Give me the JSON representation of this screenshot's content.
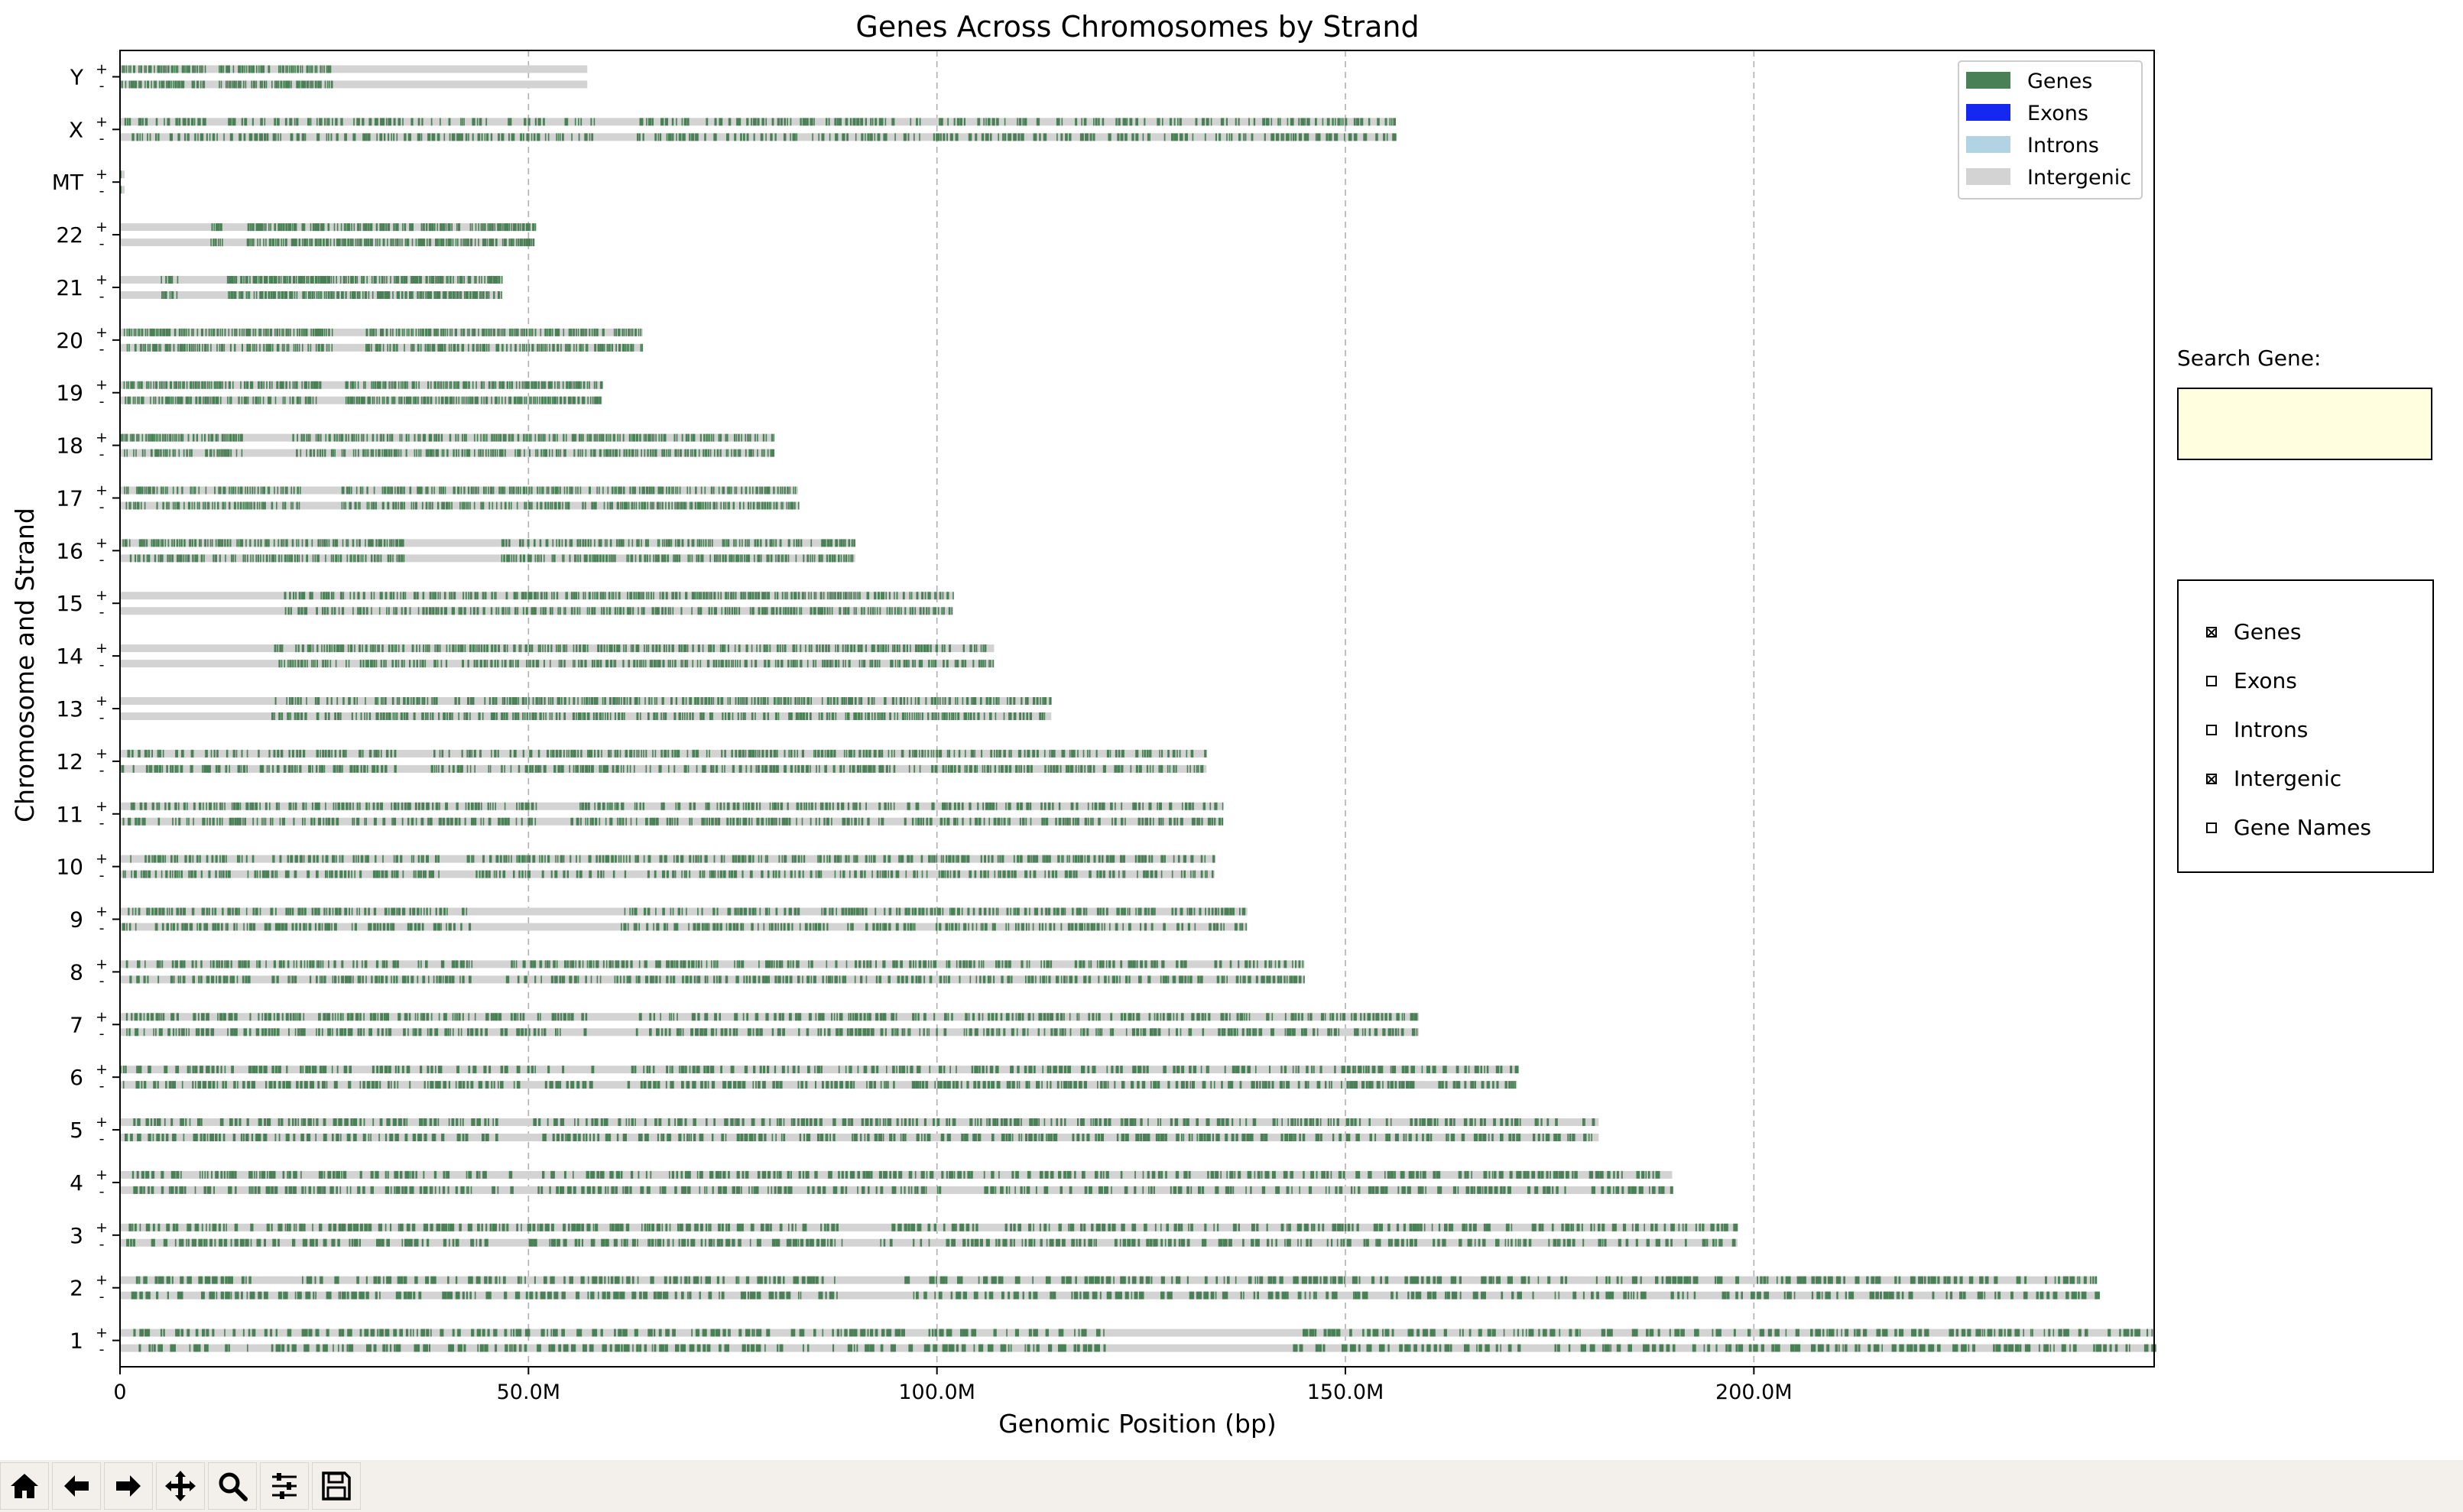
{
  "chart_data": {
    "type": "genomic-track",
    "title": "Genes Across Chromosomes by Strand",
    "xlabel": "Genomic Position (bp)",
    "ylabel": "Chromosome and Strand",
    "xlim": [
      0,
      249000000
    ],
    "x_ticks": [
      {
        "value": 0,
        "label": "0"
      },
      {
        "value": 50000000,
        "label": "50.0M"
      },
      {
        "value": 100000000,
        "label": "100.0M"
      },
      {
        "value": 150000000,
        "label": "150.0M"
      },
      {
        "value": 200000000,
        "label": "200.0M"
      }
    ],
    "grid": "vertical-dashed",
    "strands": [
      "+",
      "-"
    ],
    "legend_position": "top-right",
    "legend": [
      {
        "label": "Genes",
        "color": "#4a8055"
      },
      {
        "label": "Exons",
        "color": "#1528f2"
      },
      {
        "label": "Introns",
        "color": "#b2d3e4"
      },
      {
        "label": "Intergenic",
        "color": "#d3d3d3"
      }
    ],
    "chromosomes": [
      {
        "name": "1",
        "length": 249000000,
        "gaps": [
          [
            121500000,
            143500000
          ]
        ]
      },
      {
        "name": "2",
        "length": 242000000,
        "gaps": [
          [
            88000000,
            96000000
          ],
          [
            193000000,
            195000000
          ]
        ]
      },
      {
        "name": "3",
        "length": 198000000,
        "gaps": [
          [
            89000000,
            93000000
          ]
        ]
      },
      {
        "name": "4",
        "length": 190000000,
        "gaps": [
          [
            48000000,
            51000000
          ]
        ]
      },
      {
        "name": "5",
        "length": 181000000,
        "gaps": [
          [
            46000000,
            50000000
          ]
        ]
      },
      {
        "name": "6",
        "length": 171000000,
        "gaps": [
          [
            58000000,
            62000000
          ]
        ]
      },
      {
        "name": "7",
        "length": 159000000,
        "gaps": [
          [
            57000000,
            63000000
          ]
        ]
      },
      {
        "name": "8",
        "length": 145000000,
        "gaps": [
          [
            43000000,
            47000000
          ]
        ]
      },
      {
        "name": "9",
        "length": 138000000,
        "gaps": [
          [
            43000000,
            61000000
          ]
        ]
      },
      {
        "name": "10",
        "length": 134000000,
        "gaps": [
          [
            39000000,
            42000000
          ]
        ]
      },
      {
        "name": "11",
        "length": 135000000,
        "gaps": [
          [
            51000000,
            55000000
          ]
        ]
      },
      {
        "name": "12",
        "length": 133000000,
        "gaps": [
          [
            34000000,
            38000000
          ]
        ]
      },
      {
        "name": "13",
        "length": 114000000,
        "gaps": [
          [
            0,
            18500000
          ]
        ]
      },
      {
        "name": "14",
        "length": 107000000,
        "gaps": [
          [
            0,
            18500000
          ]
        ]
      },
      {
        "name": "15",
        "length": 102000000,
        "gaps": [
          [
            0,
            20000000
          ]
        ]
      },
      {
        "name": "16",
        "length": 90000000,
        "gaps": [
          [
            35000000,
            46500000
          ]
        ]
      },
      {
        "name": "17",
        "length": 83000000,
        "gaps": [
          [
            22000000,
            27000000
          ]
        ]
      },
      {
        "name": "18",
        "length": 80000000,
        "gaps": [
          [
            15000000,
            21000000
          ]
        ]
      },
      {
        "name": "19",
        "length": 59000000,
        "gaps": [
          [
            24500000,
            27500000
          ]
        ]
      },
      {
        "name": "20",
        "length": 64000000,
        "gaps": [
          [
            26000000,
            30000000
          ]
        ]
      },
      {
        "name": "21",
        "length": 46700000,
        "gaps": [
          [
            0,
            5000000
          ],
          [
            7000000,
            13000000
          ]
        ]
      },
      {
        "name": "22",
        "length": 50800000,
        "gaps": [
          [
            0,
            11000000
          ],
          [
            12500000,
            15500000
          ]
        ]
      },
      {
        "name": "MT",
        "length": 16569,
        "gaps": []
      },
      {
        "name": "X",
        "length": 156000000,
        "gaps": [
          [
            58000000,
            63000000
          ]
        ]
      },
      {
        "name": "Y",
        "length": 57200000,
        "gaps": [
          [
            10500000,
            12000000
          ],
          [
            26000000,
            57200000
          ]
        ]
      }
    ]
  },
  "search": {
    "label": "Search Gene:",
    "value": ""
  },
  "checkboxes": [
    {
      "label": "Genes",
      "checked": true
    },
    {
      "label": "Exons",
      "checked": false
    },
    {
      "label": "Introns",
      "checked": false
    },
    {
      "label": "Intergenic",
      "checked": true
    },
    {
      "label": "Gene Names",
      "checked": false
    }
  ],
  "toolbar": [
    {
      "icon": "home-icon"
    },
    {
      "icon": "back-arrow-icon"
    },
    {
      "icon": "forward-arrow-icon"
    },
    {
      "icon": "pan-move-icon"
    },
    {
      "icon": "zoom-magnifier-icon"
    },
    {
      "icon": "configure-subplots-icon"
    },
    {
      "icon": "save-floppy-icon"
    }
  ]
}
